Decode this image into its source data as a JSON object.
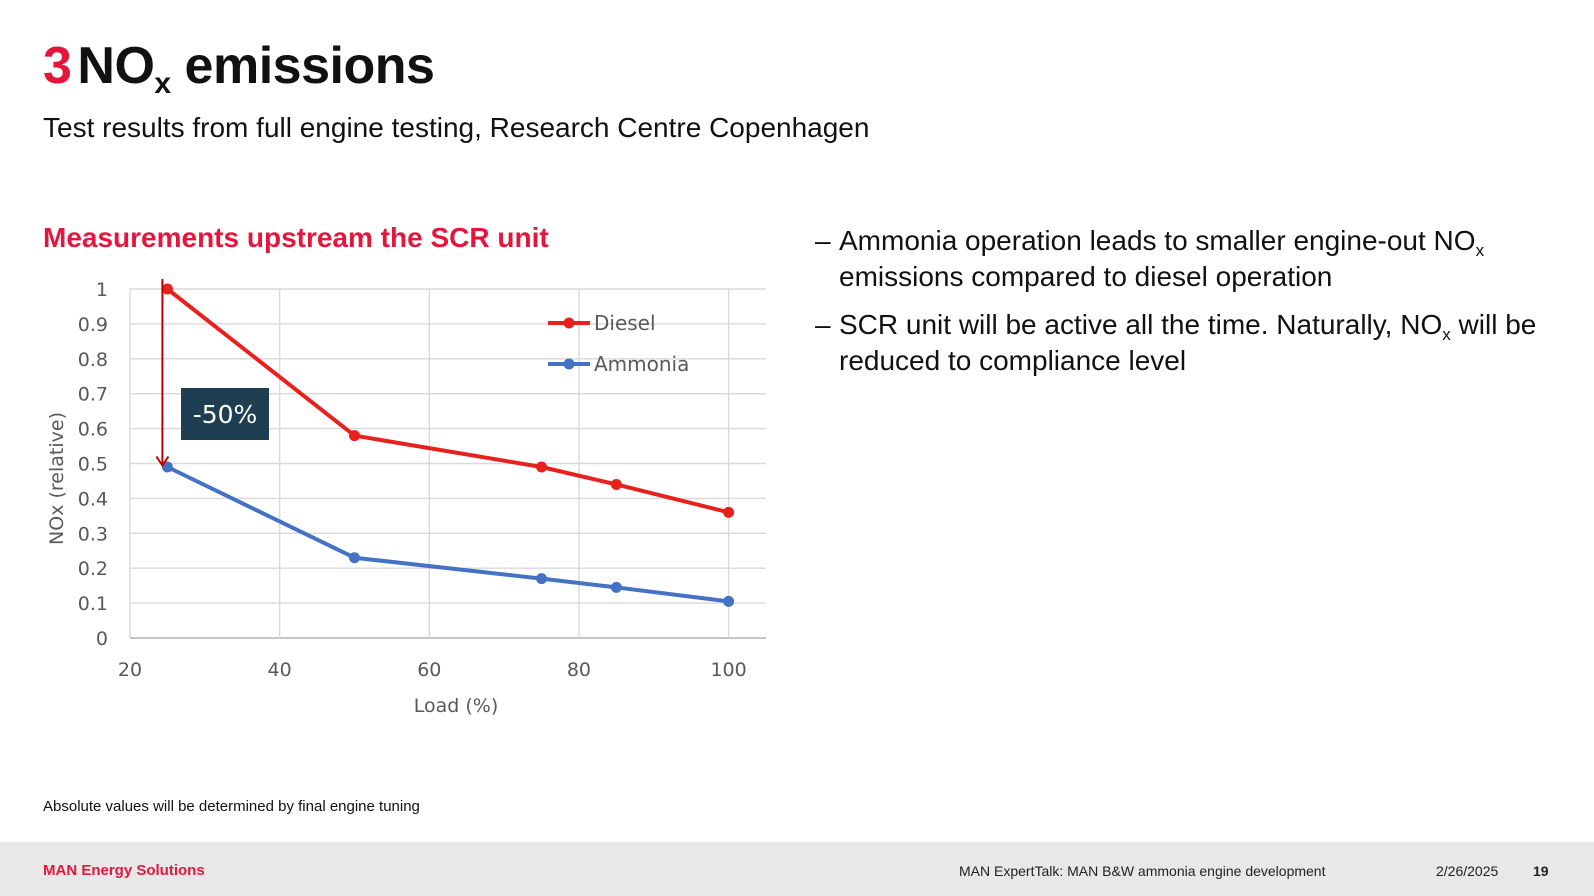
{
  "slide": {
    "title_number": "3",
    "title_main": "NO",
    "title_sub": "x",
    "title_end": " emissions",
    "subtitle": "Test results from full engine testing, Research Centre Copenhagen",
    "chart_heading": "Measurements upstream the SCR unit",
    "bullets": [
      {
        "dash": "–",
        "pre": "Ammonia operation leads to smaller engine-out NO",
        "sub": "x",
        "post": " emissions compared to diesel operation"
      },
      {
        "dash": "–",
        "pre": "SCR unit will be active all the time. Naturally, NO",
        "sub": "x",
        "post": " will be reduced to compliance level"
      }
    ],
    "footnote": "Absolute values will be determined by final engine tuning"
  },
  "footer": {
    "brand": "MAN Energy Solutions",
    "presentation_title": "MAN ExpertTalk: MAN B&W ammonia engine development",
    "date": "2/26/2025",
    "page": "19"
  },
  "chart_data": {
    "type": "line",
    "xlabel": "Load (%)",
    "ylabel": "NOx (relative)",
    "xlim": [
      20,
      105
    ],
    "ylim": [
      0,
      1
    ],
    "xticks": [
      "20",
      "40",
      "60",
      "80",
      "100"
    ],
    "yticks": [
      "0",
      "0.1",
      "0.2",
      "0.3",
      "0.4",
      "0.5",
      "0.6",
      "0.7",
      "0.8",
      "0.9",
      "1"
    ],
    "grid": true,
    "legend_position": "top-right",
    "x": [
      25,
      50,
      75,
      85,
      100
    ],
    "series": [
      {
        "name": "Diesel",
        "color": "#e8211d",
        "values": [
          1.0,
          0.58,
          0.49,
          0.44,
          0.36
        ]
      },
      {
        "name": "Ammonia",
        "color": "#4472c4",
        "values": [
          0.49,
          0.23,
          0.17,
          0.145,
          0.105
        ]
      }
    ],
    "annotation": {
      "label": "-50%",
      "from": [
        25,
        1.0
      ],
      "to": [
        25,
        0.5
      ],
      "arrow_color": "#c00000",
      "box_color": "#1e3f52"
    }
  }
}
